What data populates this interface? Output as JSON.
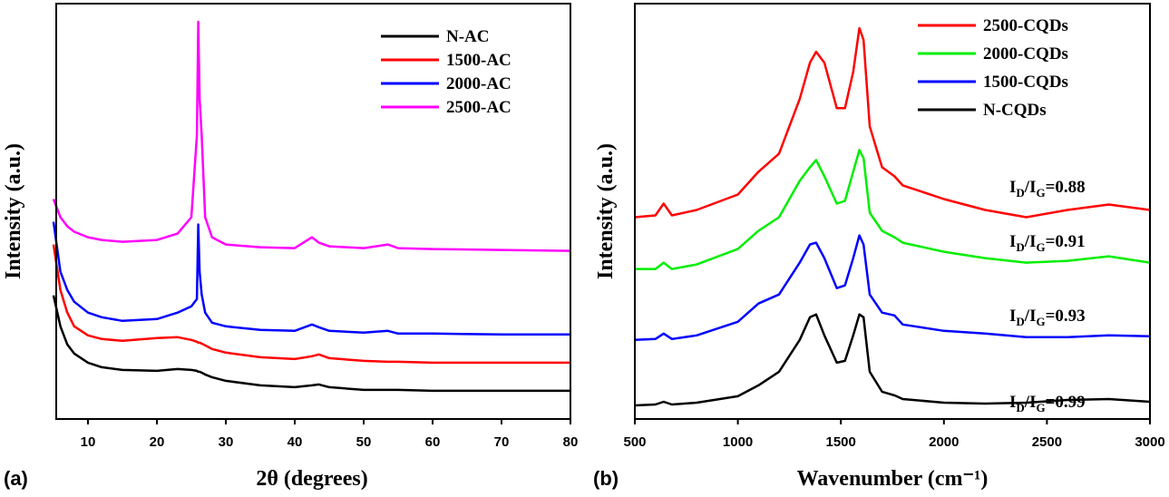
{
  "chart_data": [
    {
      "type": "line",
      "panel_label": "(a)",
      "xlabel": "2θ (degrees)",
      "ylabel": "Intensity (a.u.)",
      "xlim": [
        5,
        80
      ],
      "xticks": [
        10,
        20,
        30,
        40,
        50,
        60,
        70,
        80
      ],
      "ylim": [
        0,
        457
      ],
      "x": [
        5,
        6,
        7,
        8,
        10,
        12,
        15,
        20,
        23,
        25,
        25.8,
        26,
        26.2,
        26.5,
        27,
        28,
        30,
        35,
        40,
        42.5,
        43.5,
        45,
        50,
        53.5,
        55,
        60,
        70,
        80
      ],
      "legend": "upper right",
      "series": [
        {
          "name": "N-AC",
          "color": "#000000",
          "values": [
            136,
            102,
            82,
            72,
            62,
            57,
            54,
            53,
            55,
            54,
            53,
            52,
            52,
            51,
            49,
            46,
            42,
            37,
            35,
            37,
            38,
            35,
            32,
            32,
            32,
            31,
            31,
            31
          ]
        },
        {
          "name": "1500-AC",
          "color": "#ff0000",
          "values": [
            192,
            142,
            117,
            102,
            92,
            88,
            86,
            89,
            90,
            87,
            85,
            84,
            84,
            83,
            81,
            77,
            73,
            68,
            66,
            69,
            71,
            67,
            64,
            63,
            63,
            62,
            62,
            62
          ]
        },
        {
          "name": "2000-AC",
          "color": "#0000ff",
          "values": [
            217,
            162,
            142,
            129,
            117,
            112,
            108,
            110,
            117,
            124,
            132,
            214,
            162,
            137,
            117,
            106,
            102,
            98,
            97,
            104,
            101,
            97,
            95,
            97,
            94,
            94,
            93,
            93
          ]
        },
        {
          "name": "2500-AC",
          "color": "#ff00ff",
          "values": [
            242,
            222,
            212,
            206,
            200,
            197,
            195,
            197,
            204,
            222,
            312,
            437,
            352,
            312,
            222,
            200,
            192,
            189,
            188,
            200,
            194,
            190,
            188,
            192,
            188,
            187,
            186,
            185
          ]
        }
      ]
    },
    {
      "type": "line",
      "panel_label": "(b)",
      "xlabel": "Wavenumber (cm⁻¹)",
      "ylabel": "Intensity (a.u.)",
      "xlim": [
        500,
        3000
      ],
      "xticks": [
        500,
        1000,
        1500,
        2000,
        2500,
        3000
      ],
      "ylim": [
        0,
        457
      ],
      "x": [
        500,
        600,
        640,
        680,
        800,
        1000,
        1100,
        1200,
        1300,
        1350,
        1380,
        1420,
        1480,
        1520,
        1560,
        1590,
        1610,
        1640,
        1700,
        1760,
        1800,
        2000,
        2200,
        2400,
        2600,
        2800,
        3000
      ],
      "legend": "upper right",
      "series": [
        {
          "name": "2500-CQDs",
          "color": "#ff0000",
          "values": [
            222,
            224,
            237,
            224,
            230,
            247,
            272,
            292,
            352,
            392,
            404,
            392,
            342,
            342,
            382,
            430,
            417,
            322,
            277,
            267,
            257,
            242,
            230,
            222,
            230,
            236,
            230
          ]
        },
        {
          "name": "2000-CQDs",
          "color": "#00ee00",
          "values": [
            165,
            165,
            172,
            165,
            170,
            187,
            207,
            222,
            262,
            277,
            285,
            267,
            237,
            240,
            272,
            296,
            287,
            227,
            207,
            200,
            194,
            184,
            177,
            172,
            174,
            179,
            172
          ]
        },
        {
          "name": "1500-CQDs",
          "color": "#0000ff",
          "values": [
            87,
            88,
            94,
            88,
            92,
            107,
            127,
            137,
            172,
            192,
            194,
            177,
            144,
            147,
            177,
            202,
            192,
            137,
            117,
            114,
            104,
            97,
            94,
            90,
            90,
            92,
            91
          ]
        },
        {
          "name": "N-CQDs",
          "color": "#000000",
          "values": [
            15,
            16,
            19,
            16,
            18,
            25,
            37,
            52,
            87,
            112,
            115,
            92,
            62,
            64,
            92,
            115,
            112,
            52,
            30,
            26,
            22,
            18,
            17,
            18,
            21,
            22,
            19
          ]
        }
      ],
      "annotations": [
        {
          "parts": [
            "I",
            "D",
            "/I",
            "G",
            "=0.88"
          ]
        },
        {
          "parts": [
            "I",
            "D",
            "/I",
            "G",
            "=0.91"
          ]
        },
        {
          "parts": [
            "I",
            "D",
            "/I",
            "G",
            "=0.93"
          ]
        },
        {
          "parts": [
            "I",
            "D",
            "/I",
            "G",
            "=0.99"
          ]
        }
      ]
    }
  ]
}
